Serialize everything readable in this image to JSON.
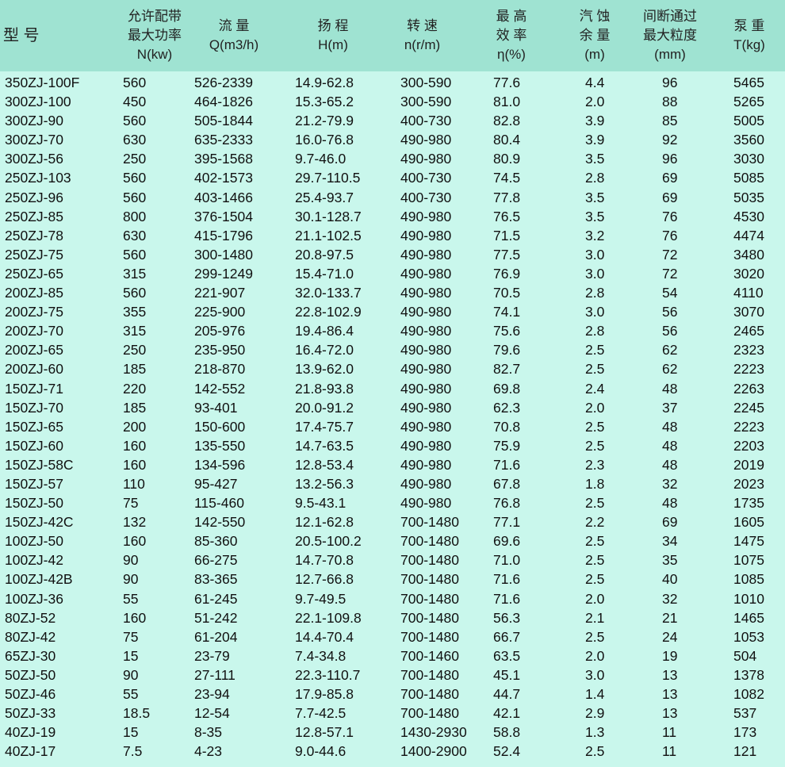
{
  "header": [
    {
      "lines": [
        "型 号"
      ]
    },
    {
      "lines": [
        "允许配带",
        "最大功率",
        "N(kw)"
      ]
    },
    {
      "lines": [
        "流 量",
        "Q(m3/h)"
      ]
    },
    {
      "lines": [
        "扬 程",
        "H(m)"
      ]
    },
    {
      "lines": [
        "转 速",
        "n(r/m)"
      ]
    },
    {
      "lines": [
        "最 高",
        "效 率",
        "η(%)"
      ]
    },
    {
      "lines": [
        "汽 蚀",
        "余 量",
        "(m)"
      ]
    },
    {
      "lines": [
        "间断通过",
        "最大粒度",
        "(mm)"
      ]
    },
    {
      "lines": [
        "泵 重",
        "T(kg)"
      ]
    }
  ],
  "rows": [
    [
      "350ZJ-100F",
      "560",
      "526-2339",
      "14.9-62.8",
      "300-590",
      "77.6",
      "4.4",
      "96",
      "5465"
    ],
    [
      "300ZJ-100",
      "450",
      "464-1826",
      "15.3-65.2",
      "300-590",
      "81.0",
      "2.0",
      "88",
      "5265"
    ],
    [
      "300ZJ-90",
      "560",
      "505-1844",
      "21.2-79.9",
      "400-730",
      "82.8",
      "3.9",
      "85",
      "5005"
    ],
    [
      "300ZJ-70",
      "630",
      "635-2333",
      "16.0-76.8",
      "490-980",
      "80.4",
      "3.9",
      "92",
      "3560"
    ],
    [
      "300ZJ-56",
      "250",
      "395-1568",
      "9.7-46.0",
      "490-980",
      "80.9",
      "3.5",
      "96",
      "3030"
    ],
    [
      "250ZJ-103",
      "560",
      "402-1573",
      "29.7-110.5",
      "400-730",
      "74.5",
      "2.8",
      "69",
      "5085"
    ],
    [
      "250ZJ-96",
      "560",
      "403-1466",
      "25.4-93.7",
      "400-730",
      "77.8",
      "3.5",
      "69",
      "5035"
    ],
    [
      "250ZJ-85",
      "800",
      "376-1504",
      "30.1-128.7",
      "490-980",
      "76.5",
      "3.5",
      "76",
      "4530"
    ],
    [
      "250ZJ-78",
      "630",
      "415-1796",
      "21.1-102.5",
      "490-980",
      "71.5",
      "3.2",
      "76",
      "4474"
    ],
    [
      "250ZJ-75",
      "560",
      "300-1480",
      "20.8-97.5",
      "490-980",
      "77.5",
      "3.0",
      "72",
      "3480"
    ],
    [
      "250ZJ-65",
      "315",
      "299-1249",
      "15.4-71.0",
      "490-980",
      "76.9",
      "3.0",
      "72",
      "3020"
    ],
    [
      "200ZJ-85",
      "560",
      "221-907",
      "32.0-133.7",
      "490-980",
      "70.5",
      "2.8",
      "54",
      "4110"
    ],
    [
      "200ZJ-75",
      "355",
      "225-900",
      "22.8-102.9",
      "490-980",
      "74.1",
      "3.0",
      "56",
      "3070"
    ],
    [
      "200ZJ-70",
      "315",
      "205-976",
      "19.4-86.4",
      "490-980",
      "75.6",
      "2.8",
      "56",
      "2465"
    ],
    [
      "200ZJ-65",
      "250",
      "235-950",
      "16.4-72.0",
      "490-980",
      "79.6",
      "2.5",
      "62",
      "2323"
    ],
    [
      "200ZJ-60",
      "185",
      "218-870",
      "13.9-62.0",
      "490-980",
      "82.7",
      "2.5",
      "62",
      "2223"
    ],
    [
      "150ZJ-71",
      "220",
      "142-552",
      "21.8-93.8",
      "490-980",
      "69.8",
      "2.4",
      "48",
      "2263"
    ],
    [
      "150ZJ-70",
      "185",
      "93-401",
      "20.0-91.2",
      "490-980",
      "62.3",
      "2.0",
      "37",
      "2245"
    ],
    [
      "150ZJ-65",
      "200",
      "150-600",
      "17.4-75.7",
      "490-980",
      "70.8",
      "2.5",
      "48",
      "2223"
    ],
    [
      "150ZJ-60",
      "160",
      "135-550",
      "14.7-63.5",
      "490-980",
      "75.9",
      "2.5",
      "48",
      "2203"
    ],
    [
      "150ZJ-58C",
      "160",
      "134-596",
      "12.8-53.4",
      "490-980",
      "71.6",
      "2.3",
      "48",
      "2019"
    ],
    [
      "150ZJ-57",
      "110",
      "95-427",
      "13.2-56.3",
      "490-980",
      "67.8",
      "1.8",
      "32",
      "2023"
    ],
    [
      "150ZJ-50",
      "75",
      "115-460",
      "9.5-43.1",
      "490-980",
      "76.8",
      "2.5",
      "48",
      "1735"
    ],
    [
      "150ZJ-42C",
      "132",
      "142-550",
      "12.1-62.8",
      "700-1480",
      "77.1",
      "2.2",
      "69",
      "1605"
    ],
    [
      "100ZJ-50",
      "160",
      "85-360",
      "20.5-100.2",
      "700-1480",
      "69.6",
      "2.5",
      "34",
      "1475"
    ],
    [
      "100ZJ-42",
      "90",
      "66-275",
      "14.7-70.8",
      "700-1480",
      "71.0",
      "2.5",
      "35",
      "1075"
    ],
    [
      "100ZJ-42B",
      "90",
      "83-365",
      "12.7-66.8",
      "700-1480",
      "71.6",
      "2.5",
      "40",
      "1085"
    ],
    [
      "100ZJ-36",
      "55",
      "61-245",
      "9.7-49.5",
      "700-1480",
      "71.6",
      "2.0",
      "32",
      "1010"
    ],
    [
      "80ZJ-52",
      "160",
      "51-242",
      "22.1-109.8",
      "700-1480",
      "56.3",
      "2.1",
      "21",
      "1465"
    ],
    [
      "80ZJ-42",
      "75",
      "61-204",
      "14.4-70.4",
      "700-1480",
      "66.7",
      "2.5",
      "24",
      "1053"
    ],
    [
      "65ZJ-30",
      "15",
      "23-79",
      "7.4-34.8",
      "700-1460",
      "63.5",
      "2.0",
      "19",
      "504"
    ],
    [
      "50ZJ-50",
      "90",
      "27-111",
      "22.3-110.7",
      "700-1480",
      "45.1",
      "3.0",
      "13",
      "1378"
    ],
    [
      "50ZJ-46",
      "55",
      "23-94",
      "17.9-85.8",
      "700-1480",
      "44.7",
      "1.4",
      "13",
      "1082"
    ],
    [
      "50ZJ-33",
      "18.5",
      "12-54",
      "7.7-42.5",
      "700-1480",
      "42.1",
      "2.9",
      "13",
      "537"
    ],
    [
      "40ZJ-19",
      "15",
      "8-35",
      "12.8-57.1",
      "1430-2930",
      "58.8",
      "1.3",
      "11",
      "173"
    ],
    [
      "40ZJ-17",
      "7.5",
      "4-23",
      "9.0-44.6",
      "1400-2900",
      "52.4",
      "2.5",
      "11",
      "121"
    ]
  ],
  "colors": {
    "header_bg": "#9fe3d2",
    "body_bg": "#c9f7ec"
  }
}
